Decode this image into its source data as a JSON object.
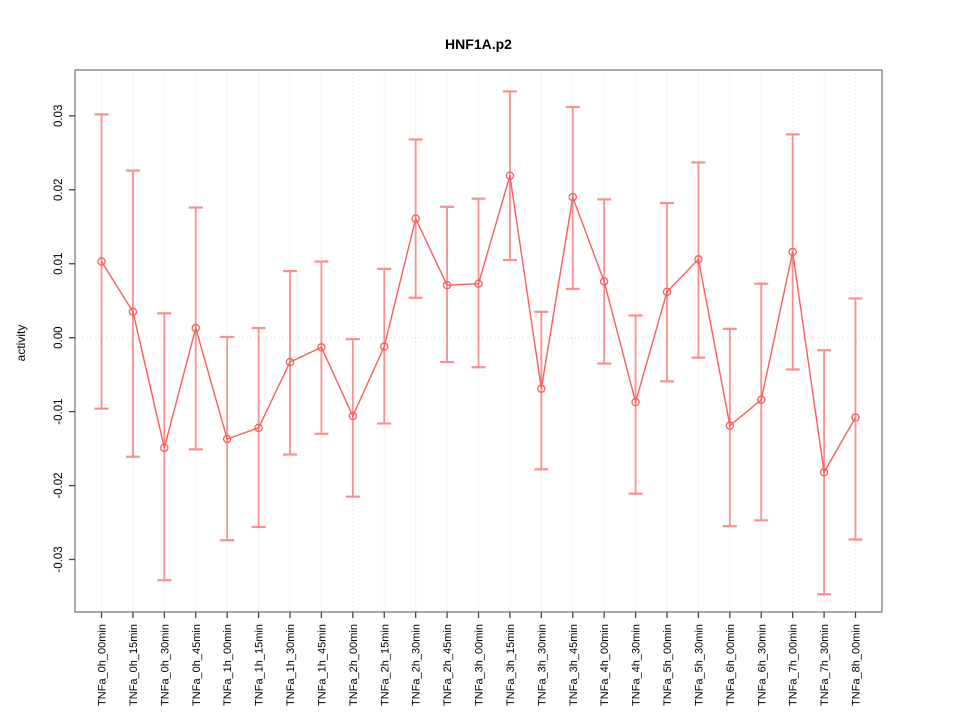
{
  "chart_data": {
    "type": "line",
    "subtype": "points-with-error-bars",
    "title": "HNF1A.p2",
    "xlabel": "",
    "ylabel": "activity",
    "legend": "none",
    "grid": "vertical dotted gridline per category; dotted horizontal line at y=0",
    "ylim": [
      -0.0371,
      0.0362
    ],
    "yticks": [
      -0.03,
      -0.02,
      -0.01,
      0,
      0.01,
      0.02,
      0.03
    ],
    "ytick_labels": [
      "-0.03",
      "-0.02",
      "-0.01",
      "0.00",
      "0.01",
      "0.02",
      "0.03"
    ],
    "categories": [
      "TNFa_0h_00min",
      "TNFa_0h_15min",
      "TNFa_0h_30min",
      "TNFa_0h_45min",
      "TNFa_1h_00min",
      "TNFa_1h_15min",
      "TNFa_1h_30min",
      "TNFa_1h_45min",
      "TNFa_2h_00min",
      "TNFa_2h_15min",
      "TNFa_2h_30min",
      "TNFa_2h_45min",
      "TNFa_3h_00min",
      "TNFa_3h_15min",
      "TNFa_3h_30min",
      "TNFa_3h_45min",
      "TNFa_4h_00min",
      "TNFa_4h_30min",
      "TNFa_5h_00min",
      "TNFa_5h_30min",
      "TNFa_6h_00min",
      "TNFa_6h_30min",
      "TNFa_7h_00min",
      "TNFa_7h_30min",
      "TNFa_8h_00min"
    ],
    "series": [
      {
        "name": "activity",
        "values": [
          0.0103,
          0.0035,
          -0.0149,
          0.0013,
          -0.0137,
          -0.0122,
          -0.0033,
          -0.0013,
          -0.0106,
          -0.0012,
          0.0161,
          0.0071,
          0.0073,
          0.0219,
          -0.0069,
          0.019,
          0.0076,
          -0.0087,
          0.0062,
          0.0106,
          -0.0119,
          -0.0084,
          0.0116,
          -0.0182,
          -0.0108
        ],
        "upper": [
          0.0302,
          0.0226,
          0.0033,
          0.0176,
          0.0001,
          0.0013,
          0.009,
          0.0103,
          -0.0002,
          0.0093,
          0.0268,
          0.0177,
          0.0188,
          0.0333,
          0.0035,
          0.0312,
          0.0187,
          0.003,
          0.0182,
          0.0237,
          0.0012,
          0.0073,
          0.0275,
          -0.0017,
          0.0053
        ],
        "lower": [
          -0.0096,
          -0.0161,
          -0.0328,
          -0.0151,
          -0.0274,
          -0.0256,
          -0.0158,
          -0.013,
          -0.0215,
          -0.0116,
          0.0054,
          -0.0033,
          -0.004,
          0.0105,
          -0.0178,
          0.0066,
          -0.0035,
          -0.0211,
          -0.0059,
          -0.0027,
          -0.0255,
          -0.0247,
          -0.0043,
          -0.0347,
          -0.0273
        ]
      }
    ],
    "colors": {
      "series_line": "#f75f5f",
      "point_stroke": "#f75f5f",
      "error_bar": "#f89090",
      "gridline": "#d9d9d9",
      "frame": "#7d7d7d",
      "tick": "#444444",
      "text": "#000000",
      "background": "#ffffff"
    }
  }
}
